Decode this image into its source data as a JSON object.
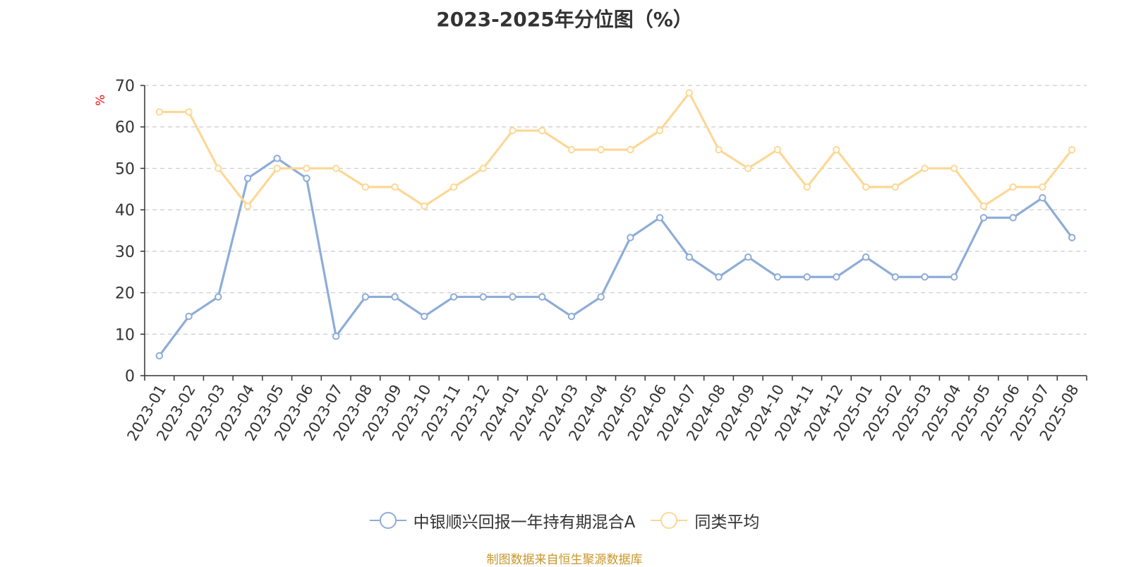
{
  "chart_data": {
    "type": "line",
    "title": "2023-2025年分位图（%）",
    "ylabel": "%",
    "ylim": [
      0,
      70
    ],
    "yticks": [
      0,
      10,
      20,
      30,
      40,
      50,
      60,
      70
    ],
    "grid": true,
    "legend_position": "bottom",
    "categories": [
      "2023-01",
      "2023-02",
      "2023-03",
      "2023-04",
      "2023-05",
      "2023-06",
      "2023-07",
      "2023-08",
      "2023-09",
      "2023-10",
      "2023-11",
      "2023-12",
      "2024-01",
      "2024-02",
      "2024-03",
      "2024-04",
      "2024-05",
      "2024-06",
      "2024-07",
      "2024-08",
      "2024-09",
      "2024-10",
      "2024-11",
      "2024-12",
      "2025-01",
      "2025-02",
      "2025-03",
      "2025-04",
      "2025-05",
      "2025-06",
      "2025-07",
      "2025-08"
    ],
    "series": [
      {
        "name": "中银顺兴回报一年持有期混合A",
        "color": "#8eacd8",
        "values": [
          4.8,
          14.3,
          19.0,
          47.6,
          52.4,
          47.6,
          9.5,
          19.0,
          19.0,
          14.3,
          19.0,
          19.0,
          19.0,
          19.0,
          14.3,
          19.0,
          33.3,
          38.1,
          28.6,
          23.8,
          28.6,
          23.8,
          23.8,
          23.8,
          28.6,
          23.8,
          23.8,
          23.8,
          38.1,
          38.1,
          42.9,
          33.3
        ]
      },
      {
        "name": "同类平均",
        "color": "#fcd896",
        "values": [
          63.6,
          63.6,
          50.0,
          40.9,
          50.0,
          50.0,
          50.0,
          45.5,
          45.5,
          40.9,
          45.5,
          50.0,
          59.1,
          59.1,
          54.5,
          54.5,
          54.5,
          59.1,
          68.2,
          54.5,
          50.0,
          54.5,
          45.5,
          54.5,
          45.5,
          45.5,
          50.0,
          50.0,
          40.9,
          45.5,
          45.5,
          54.5
        ]
      }
    ]
  },
  "source_note": "制图数据来自恒生聚源数据库"
}
